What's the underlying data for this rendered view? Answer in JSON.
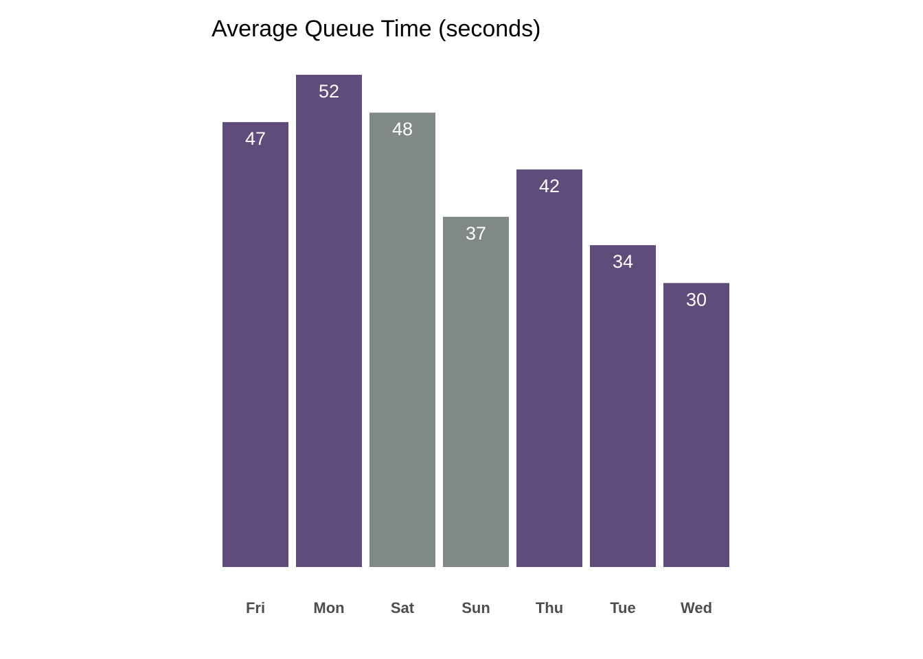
{
  "chart_data": {
    "type": "bar",
    "title": "Average Queue Time (seconds)",
    "xlabel": "",
    "ylabel": "",
    "categories": [
      "Fri",
      "Mon",
      "Sat",
      "Sun",
      "Thu",
      "Tue",
      "Wed"
    ],
    "values": [
      47,
      52,
      48,
      37,
      42,
      34,
      30
    ],
    "bar_colors": [
      "#604c7b",
      "#604c7b",
      "#818888",
      "#818888",
      "#604c7b",
      "#604c7b",
      "#604c7b"
    ],
    "value_label_color": "#ffffff",
    "tick_label_color": "#4d4d4d",
    "ylim": [
      0,
      52
    ],
    "grid": false,
    "legend": "none"
  }
}
